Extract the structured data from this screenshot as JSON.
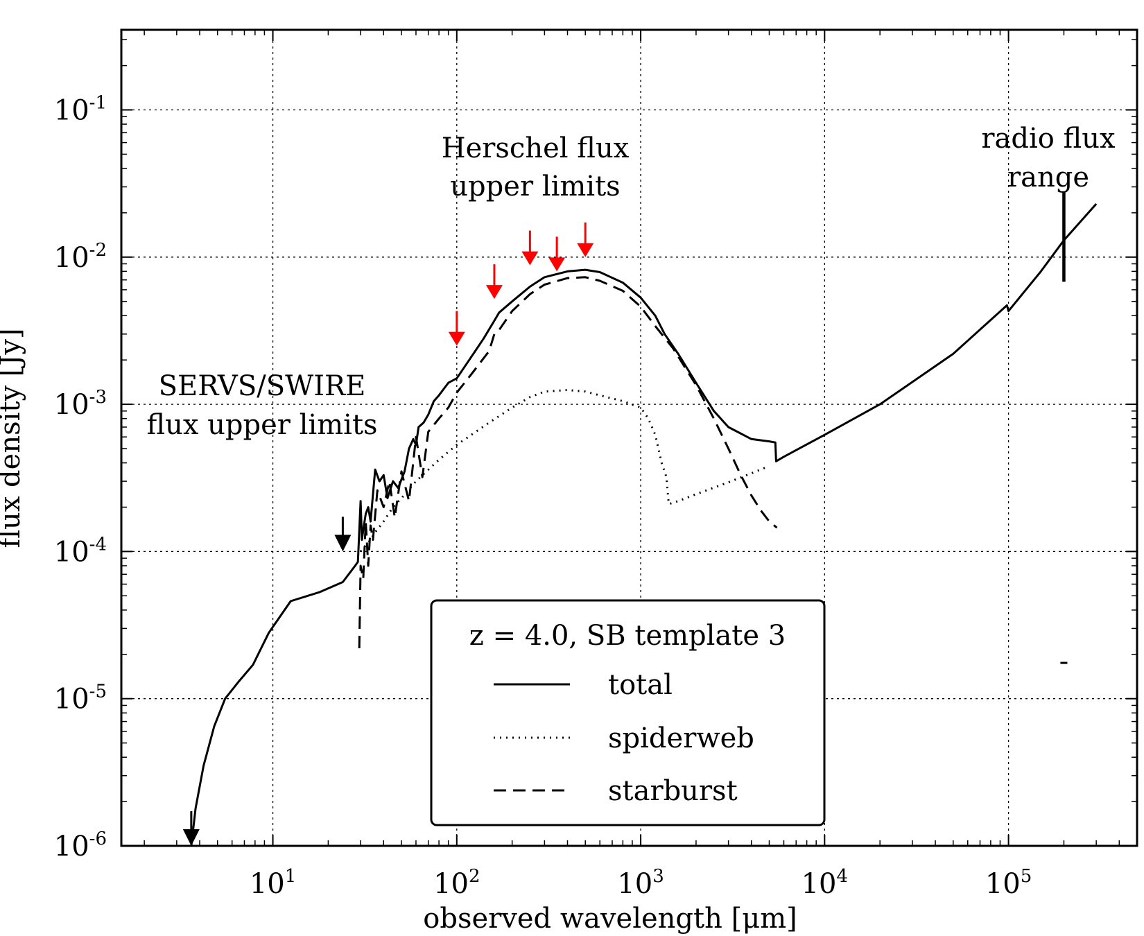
{
  "chart_data": {
    "type": "line",
    "xlabel": "observed wavelength [μm]",
    "ylabel": "flux density [Jy]",
    "x_scale": "log",
    "y_scale": "log",
    "xlim": [
      1.5,
      500000
    ],
    "ylim": [
      1e-06,
      0.35
    ],
    "grid": true,
    "x_ticks": [
      {
        "value": 10,
        "base": "10",
        "exp": "1"
      },
      {
        "value": 100,
        "base": "10",
        "exp": "2"
      },
      {
        "value": 1000,
        "base": "10",
        "exp": "3"
      },
      {
        "value": 10000,
        "base": "10",
        "exp": "4"
      },
      {
        "value": 100000,
        "base": "10",
        "exp": "5"
      }
    ],
    "y_ticks": [
      {
        "value": 1e-06,
        "base": "10",
        "exp": "-6"
      },
      {
        "value": 1e-05,
        "base": "10",
        "exp": "-5"
      },
      {
        "value": 0.0001,
        "base": "10",
        "exp": "-4"
      },
      {
        "value": 0.001,
        "base": "10",
        "exp": "-3"
      },
      {
        "value": 0.01,
        "base": "10",
        "exp": "-2"
      },
      {
        "value": 0.1,
        "base": "10",
        "exp": "-1"
      }
    ],
    "legend": {
      "title": "z = 4.0, SB template 3",
      "placement": "lower-center"
    },
    "series": [
      {
        "name": "total",
        "style": "solid",
        "x": [
          3.6,
          3.8,
          4.2,
          4.8,
          5.5,
          6.5,
          7.8,
          9.5,
          12.5,
          18,
          24,
          28,
          29,
          30,
          30.5,
          31,
          32,
          33,
          34,
          36,
          38,
          40,
          42,
          45,
          48,
          52,
          55,
          58,
          60,
          62,
          66,
          70,
          75,
          80,
          90,
          100,
          120,
          140,
          160,
          170,
          200,
          250,
          300,
          400,
          500,
          600,
          800,
          1000,
          1200,
          1350,
          1600,
          2000,
          2500,
          3000,
          4000,
          5000,
          5400,
          5450,
          6000,
          10000,
          20000,
          50000,
          98000,
          100000,
          150000,
          200000,
          300000
        ],
        "y": [
          1e-06,
          1.8e-06,
          3.5e-06,
          6.5e-06,
          1e-05,
          1.3e-05,
          1.7e-05,
          2.8e-05,
          4.6e-05,
          5.3e-05,
          6.2e-05,
          8e-05,
          8.5e-05,
          0.00022,
          0.00012,
          0.00014,
          0.00018,
          0.0002,
          0.00016,
          0.00036,
          0.0003,
          0.00033,
          0.00023,
          0.0003,
          0.00027,
          0.00035,
          0.0005,
          0.00058,
          0.00053,
          0.0007,
          0.00075,
          0.00085,
          0.00105,
          0.00115,
          0.0014,
          0.0015,
          0.0021,
          0.0028,
          0.0037,
          0.0042,
          0.005,
          0.0063,
          0.0073,
          0.008,
          0.0082,
          0.0079,
          0.0067,
          0.0053,
          0.004,
          0.003,
          0.0022,
          0.0014,
          0.0009,
          0.0007,
          0.00058,
          0.00056,
          0.00055,
          0.00041,
          0.00044,
          0.00062,
          0.001,
          0.0022,
          0.0047,
          0.0043,
          0.008,
          0.013,
          0.023
        ]
      },
      {
        "name": "spiderweb",
        "style": "dotted",
        "x": [
          30,
          32,
          34,
          36,
          40,
          45,
          50,
          60,
          80,
          100,
          150,
          200,
          250,
          300,
          400,
          500,
          600,
          800,
          1000,
          1100,
          1200,
          1300,
          1380,
          1420,
          1600,
          2000,
          3000,
          4000,
          5000
        ],
        "y": [
          0.0001,
          0.00011,
          0.00012,
          0.000135,
          0.00016,
          0.0002,
          0.00023,
          0.0003,
          0.00042,
          0.00053,
          0.00075,
          0.00095,
          0.00112,
          0.00122,
          0.00125,
          0.00122,
          0.00115,
          0.00105,
          0.00095,
          0.0008,
          0.00062,
          0.0004,
          0.00032,
          0.00021,
          0.00022,
          0.000245,
          0.000295,
          0.00034,
          0.00038
        ]
      },
      {
        "name": "starburst",
        "style": "dashed",
        "x": [
          29.5,
          30,
          31,
          32,
          33,
          34,
          35,
          37,
          40,
          43,
          46,
          50,
          55,
          60,
          65,
          70,
          80,
          90,
          100,
          120,
          150,
          160,
          170,
          200,
          250,
          300,
          400,
          500,
          600,
          800,
          1000,
          1200,
          1500,
          2000,
          2500,
          3000,
          3500,
          4000,
          4500,
          5000,
          5500
        ],
        "y": [
          2.2e-05,
          8e-05,
          6.5e-05,
          0.00016,
          8e-05,
          0.00015,
          0.00012,
          0.00026,
          0.0002,
          0.0003,
          0.00017,
          0.00035,
          0.00022,
          0.0006,
          0.00032,
          0.00065,
          0.0008,
          0.00095,
          0.0012,
          0.0016,
          0.0023,
          0.003,
          0.0032,
          0.0043,
          0.0056,
          0.0065,
          0.0072,
          0.0073,
          0.0069,
          0.0059,
          0.0046,
          0.0034,
          0.0024,
          0.00135,
          0.0008,
          0.0005,
          0.00033,
          0.00024,
          0.00019,
          0.00016,
          0.000145
        ]
      }
    ],
    "upper_limits": [
      {
        "group": "SERVS/SWIRE",
        "color": "#000000",
        "x": 3.6,
        "y": 1e-06
      },
      {
        "group": "SERVS/SWIRE",
        "color": "#000000",
        "x": 24,
        "y": 0.0001
      },
      {
        "group": "Herschel",
        "color": "#ff0000",
        "x": 100,
        "y": 0.0025
      },
      {
        "group": "Herschel",
        "color": "#ff0000",
        "x": 160,
        "y": 0.0052
      },
      {
        "group": "Herschel",
        "color": "#ff0000",
        "x": 250,
        "y": 0.0088
      },
      {
        "group": "Herschel",
        "color": "#ff0000",
        "x": 350,
        "y": 0.008
      },
      {
        "group": "Herschel",
        "color": "#ff0000",
        "x": 500,
        "y": 0.01
      }
    ],
    "radio_range": {
      "x": 200000,
      "y_low": 0.0068,
      "y_high": 0.028,
      "marker_y": 1.75e-05
    },
    "annotations": {
      "servs_line1": "SERVS/SWIRE",
      "servs_line2": "flux upper limits",
      "herschel_line1": "Herschel flux",
      "herschel_line2": "upper limits",
      "radio_line1": "radio flux",
      "radio_line2": "range"
    },
    "colors": {
      "axes": "#000000",
      "grid": "#000000",
      "herschel": "#ff0000",
      "series": "#000000"
    }
  }
}
